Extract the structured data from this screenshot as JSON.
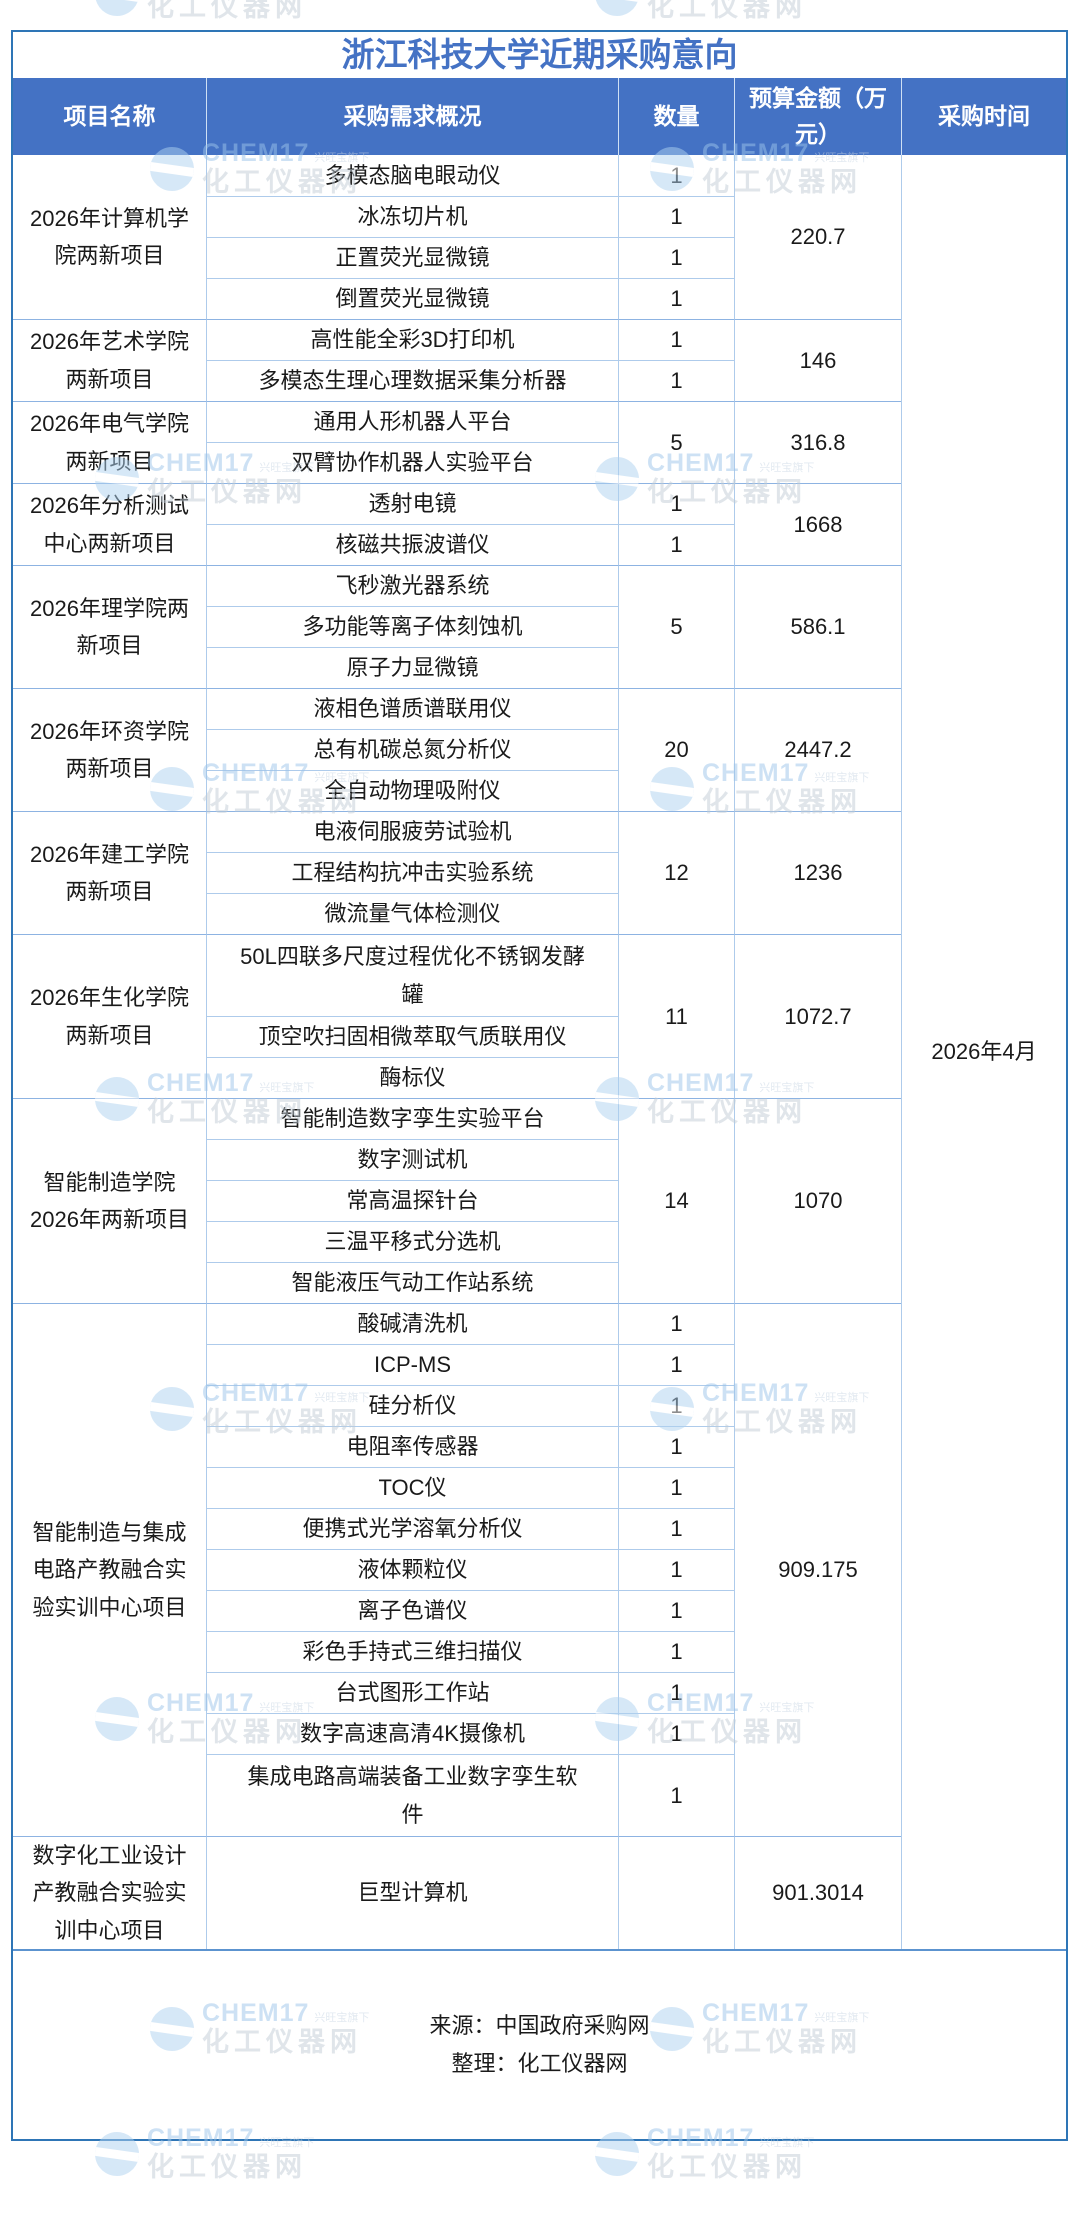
{
  "title": "浙江科技大学近期采购意向",
  "columns": [
    "项目名称",
    "采购需求概况",
    "数量",
    "预算金额（万元）",
    "采购时间"
  ],
  "purchase_time": "2026年4月",
  "groups": [
    {
      "name": "2026年计算机学院两新项目",
      "budget": "220.7",
      "items": [
        {
          "name": "多模态脑电眼动仪",
          "qty": "1"
        },
        {
          "name": "冰冻切片机",
          "qty": "1"
        },
        {
          "name": "正置荧光显微镜",
          "qty": "1"
        },
        {
          "name": "倒置荧光显微镜",
          "qty": "1"
        }
      ]
    },
    {
      "name": "2026年艺术学院两新项目",
      "budget": "146",
      "items": [
        {
          "name": "高性能全彩3D打印机",
          "qty": "1"
        },
        {
          "name": "多模态生理心理数据采集分析器",
          "qty": "1"
        }
      ]
    },
    {
      "name": "2026年电气学院两新项目",
      "budget": "316.8",
      "qty_merged": "5",
      "items": [
        {
          "name": "通用人形机器人平台"
        },
        {
          "name": "双臂协作机器人实验平台"
        }
      ]
    },
    {
      "name": "2026年分析测试中心两新项目",
      "budget": "1668",
      "items": [
        {
          "name": "透射电镜",
          "qty": "1"
        },
        {
          "name": "核磁共振波谱仪",
          "qty": "1"
        }
      ]
    },
    {
      "name": "2026年理学院两新项目",
      "budget": "586.1",
      "qty_merged": "5",
      "items": [
        {
          "name": "飞秒激光器系统"
        },
        {
          "name": "多功能等离子体刻蚀机"
        },
        {
          "name": "原子力显微镜"
        }
      ]
    },
    {
      "name": "2026年环资学院两新项目",
      "budget": "2447.2",
      "qty_merged": "20",
      "items": [
        {
          "name": "液相色谱质谱联用仪"
        },
        {
          "name": "总有机碳总氮分析仪"
        },
        {
          "name": "全自动物理吸附仪"
        }
      ]
    },
    {
      "name": "2026年建工学院两新项目",
      "budget": "1236",
      "qty_merged": "12",
      "items": [
        {
          "name": "电液伺服疲劳试验机"
        },
        {
          "name": "工程结构抗冲击实验系统"
        },
        {
          "name": "微流量气体检测仪"
        }
      ]
    },
    {
      "name": "2026年生化学院两新项目",
      "budget": "1072.7",
      "qty_merged": "11",
      "items": [
        {
          "name": "50L四联多尺度过程优化不锈钢发酵罐"
        },
        {
          "name": "顶空吹扫固相微萃取气质联用仪"
        },
        {
          "name": "酶标仪"
        }
      ]
    },
    {
      "name": "智能制造学院2026年两新项目",
      "budget": "1070",
      "qty_merged": "14",
      "items": [
        {
          "name": "智能制造数字孪生实验平台"
        },
        {
          "name": "数字测试机"
        },
        {
          "name": "常高温探针台"
        },
        {
          "name": "三温平移式分选机"
        },
        {
          "name": "智能液压气动工作站系统"
        }
      ]
    },
    {
      "name": "智能制造与集成电路产教融合实验实训中心项目",
      "budget": "909.175",
      "items": [
        {
          "name": "酸碱清洗机",
          "qty": "1"
        },
        {
          "name": "ICP-MS",
          "qty": "1"
        },
        {
          "name": "硅分析仪",
          "qty": "1"
        },
        {
          "name": "电阻率传感器",
          "qty": "1"
        },
        {
          "name": "TOC仪",
          "qty": "1"
        },
        {
          "name": "便携式光学溶氧分析仪",
          "qty": "1"
        },
        {
          "name": "液体颗粒仪",
          "qty": "1"
        },
        {
          "name": "离子色谱仪",
          "qty": "1"
        },
        {
          "name": "彩色手持式三维扫描仪",
          "qty": "1"
        },
        {
          "name": "台式图形工作站",
          "qty": "1"
        },
        {
          "name": "数字高速高清4K摄像机",
          "qty": "1"
        },
        {
          "name": "集成电路高端装备工业数字孪生软件",
          "qty": "1"
        }
      ]
    },
    {
      "name": "数字化工业设计产教融合实验实训中心项目",
      "budget": "901.3014",
      "qty_merged": "",
      "items": [
        {
          "name": "巨型计算机"
        }
      ]
    }
  ],
  "footer": {
    "source": "来源：中国政府采购网",
    "compiler": "整理：化工仪器网"
  },
  "watermark": {
    "brand": "CHEM17",
    "brand_suffix": "兴旺宝旗下",
    "site": "化工仪器网"
  },
  "colors": {
    "header_bg": "#4472C4",
    "title_text": "#4472C4",
    "border_outer": "#2E75B6",
    "border_inner": "#AECBEB",
    "border_group": "#8DB3E2"
  }
}
